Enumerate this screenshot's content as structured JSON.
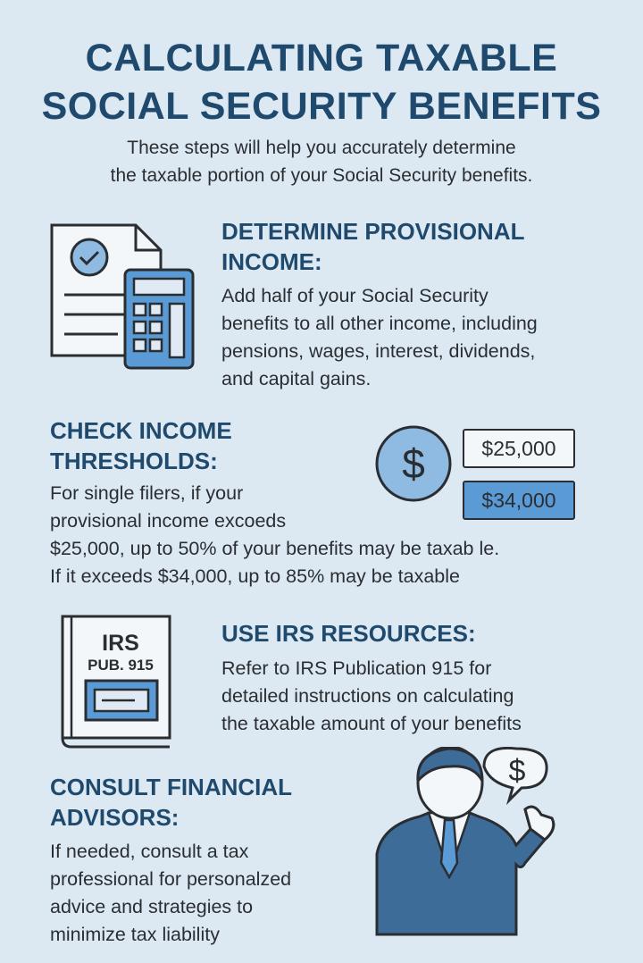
{
  "title": {
    "line1": "CALCULATING TAXABLE",
    "line2": "SOCIAL SECURITY BENEFITS"
  },
  "subtitle": {
    "line1": "These steps will help you accurately determine",
    "line2": "the taxable portion of your Social Security benefits."
  },
  "colors": {
    "background": "#dde9f2",
    "heading": "#1f4a6e",
    "accent": "#5b9bd5",
    "icon_dark": "#3d6c98"
  },
  "steps": [
    {
      "heading": [
        "DETERMINE PROVISIONAL",
        "INCOME:"
      ],
      "body": [
        "Add half of your Social Security",
        "benefits to all other income, including",
        "pensions, wages, interest, dividends,",
        "and capital gains."
      ],
      "icon": "document-calculator-icon"
    },
    {
      "heading": [
        "CHECK INCOME",
        "THRESHOLDS:"
      ],
      "body": [
        "For single filers, if your",
        "provisional income excoeds",
        "$25,000, up to 50% of your benefits may be taxab le.",
        "If it exceeds $34,000, up to 85% may be taxable"
      ],
      "icon": "dollar-coin-icon",
      "thresholds": [
        "$25,000",
        "$34,000"
      ]
    },
    {
      "heading": [
        "USE IRS RESOURCES:"
      ],
      "body": [
        "Refer to IRS Publication 915 for",
        "detailed instructions on calculating",
        "the taxable amount of your benefits"
      ],
      "icon": "irs-book-icon",
      "book": {
        "line1": "IRS",
        "line2": "PUB. 915"
      }
    },
    {
      "heading": [
        "CONSULT FINANCIAL",
        "ADVISORS:"
      ],
      "body": [
        "If needed, consult a tax",
        "professional for personalzed",
        "advice and strategies to",
        "minimize tax liability"
      ],
      "icon": "advisor-icon",
      "bubble": "$"
    }
  ]
}
